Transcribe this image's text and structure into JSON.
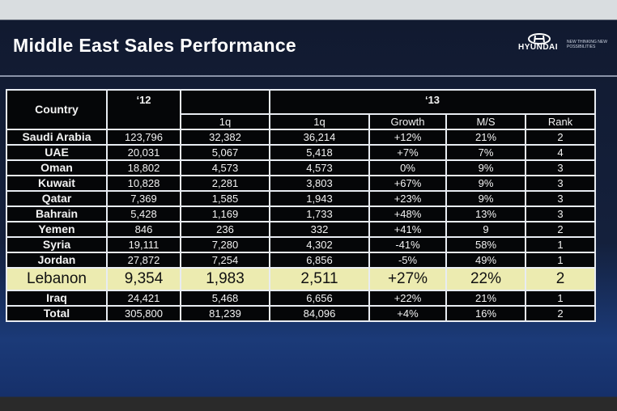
{
  "header": {
    "title": "Middle East Sales Performance",
    "brand": "HYUNDAI",
    "tagline": "NEW THINKING NEW POSSIBILITIES"
  },
  "table": {
    "group_headers": [
      "Country",
      "‘12",
      "‘13"
    ],
    "columns": [
      "1q",
      "1q",
      "Growth",
      "M/S",
      "Rank"
    ],
    "rows": [
      [
        "Saudi Arabia",
        "123,796",
        "32,382",
        "36,214",
        "+12%",
        "21%",
        "2"
      ],
      [
        "UAE",
        "20,031",
        "5,067",
        "5,418",
        "+7%",
        "7%",
        "4"
      ],
      [
        "Oman",
        "18,802",
        "4,573",
        "4,573",
        "0%",
        "9%",
        "3"
      ],
      [
        "Kuwait",
        "10,828",
        "2,281",
        "3,803",
        "+67%",
        "9%",
        "3"
      ],
      [
        "Qatar",
        "7,369",
        "1,585",
        "1,943",
        "+23%",
        "9%",
        "3"
      ],
      [
        "Bahrain",
        "5,428",
        "1,169",
        "1,733",
        "+48%",
        "13%",
        "3"
      ],
      [
        "Yemen",
        "846",
        "236",
        "332",
        "+41%",
        "9",
        "2"
      ],
      [
        "Syria",
        "19,111",
        "7,280",
        "4,302",
        "-41%",
        "58%",
        "1"
      ],
      [
        "Jordan",
        "27,872",
        "7,254",
        "6,856",
        "-5%",
        "49%",
        "1"
      ],
      [
        "Lebanon",
        "9,354",
        "1,983",
        "2,511",
        "+27%",
        "22%",
        "2"
      ],
      [
        "Iraq",
        "24,421",
        "5,468",
        "6,656",
        "+22%",
        "21%",
        "1"
      ],
      [
        "Total",
        "305,800",
        "81,239",
        "84,096",
        "+4%",
        "16%",
        "2"
      ]
    ]
  }
}
